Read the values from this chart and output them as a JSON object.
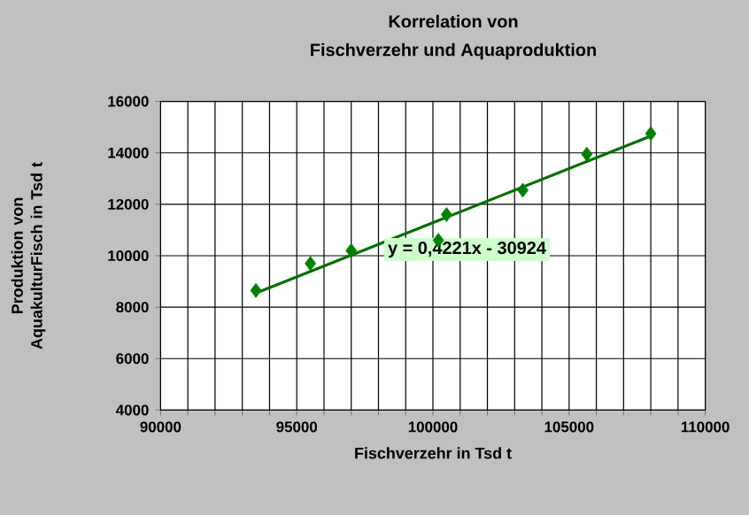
{
  "chart_data": {
    "type": "scatter",
    "title": "Korrelation von",
    "subtitle": "Fischverzehr und Aquaproduktion",
    "xlabel": "Fischverzehr in Tsd t",
    "ylabel": "Produktion von AquakulturFisch in Tsd t",
    "series": [
      {
        "color": "#008000",
        "marker": "diamond",
        "x": [
          93500,
          95500,
          97000,
          100200,
          100500,
          103300,
          105650,
          108000
        ],
        "values": [
          8650,
          9700,
          10200,
          10600,
          11600,
          12550,
          13950,
          14750
        ]
      },
      {
        "type": "line",
        "color": "#007000",
        "x": [
          93500,
          108000
        ],
        "values": [
          8550,
          14650
        ]
      }
    ],
    "annotations": [
      "y = 0,4221x - 30924"
    ],
    "xlim": [
      90000,
      110000
    ],
    "ylim": [
      4000,
      16000
    ],
    "xticks": [
      90000,
      {
        "value": 91000,
        "label": null
      },
      {
        "value": 92000,
        "label": null
      },
      {
        "value": 93000,
        "label": null
      },
      {
        "value": 94000,
        "label": null
      },
      95000,
      {
        "value": 96000,
        "label": null
      },
      {
        "value": 97000,
        "label": null
      },
      {
        "value": 98000,
        "label": null
      },
      {
        "value": 99000,
        "label": null
      },
      100000,
      {
        "value": 101000,
        "label": null
      },
      {
        "value": 102000,
        "label": null
      },
      {
        "value": 103000,
        "label": null
      },
      {
        "value": 104000,
        "label": null
      },
      105000,
      {
        "value": 106000,
        "label": null
      },
      {
        "value": 107000,
        "label": null
      },
      {
        "value": 108000,
        "label": null
      },
      {
        "value": 109000,
        "label": null
      },
      110000
    ],
    "yticks": [
      4000,
      6000,
      8000,
      10000,
      12000,
      14000,
      16000
    ],
    "grid": true
  }
}
